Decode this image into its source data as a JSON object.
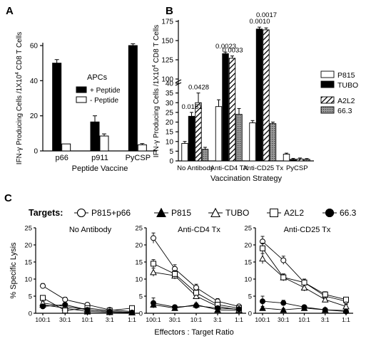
{
  "panel_labels": {
    "a": "A",
    "b": "B",
    "c": "C"
  },
  "chart_data": [
    {
      "type": "bar",
      "panel": "A",
      "categories": [
        "p66",
        "p911",
        "PyCSP"
      ],
      "series": [
        {
          "name": "+ Peptide",
          "color": "#000000",
          "values": [
            50,
            16.5,
            60
          ],
          "errors": [
            2,
            3.5,
            1
          ]
        },
        {
          "name": "- Peptide",
          "color": "#ffffff",
          "values": [
            4,
            8.5,
            3.5
          ],
          "errors": [
            0,
            1.2,
            0.7
          ]
        }
      ],
      "legend_title": "APCs",
      "xlabel": "Peptide Vaccine",
      "ylabel_main": "IFN-γ Producing Cells /1X10",
      "ylabel_sup": "4",
      "ylabel_tail": " CD8 T Cells",
      "ylim": [
        0,
        60
      ],
      "yticks": [
        0,
        20,
        40,
        60
      ]
    },
    {
      "type": "bar",
      "panel": "B",
      "categories": [
        "No Antibody",
        "Anti-CD4 TX",
        "Anti-CD25 Tx",
        "PyCSP"
      ],
      "series": [
        {
          "name": "P815",
          "color": "#ffffff",
          "pattern": "none",
          "values": [
            9,
            28,
            43,
            3.5
          ],
          "errors": [
            1,
            3.5,
            3,
            0.5
          ]
        },
        {
          "name": "TUBO",
          "color": "#000000",
          "pattern": "none",
          "values": [
            23,
            133,
            165,
            0.8
          ],
          "errors": [
            2,
            2,
            2.5,
            0.5
          ]
        },
        {
          "name": "A2L2",
          "color": "#ffffff",
          "pattern": "diagonal",
          "values": [
            30,
            127,
            164,
            1
          ],
          "errors": [
            5,
            3,
            2.5,
            0.5
          ]
        },
        {
          "name": "66.3",
          "color": "#888888",
          "pattern": "dots",
          "values": [
            6,
            24,
            42,
            0.8
          ],
          "errors": [
            1,
            3,
            2,
            0.4
          ]
        }
      ],
      "pvalues": [
        {
          "category": "No Antibody",
          "series": "TUBO",
          "label": "0.0151"
        },
        {
          "category": "No Antibody",
          "series": "A2L2",
          "label": "0.0428"
        },
        {
          "category": "Anti-CD4 TX",
          "series": "TUBO",
          "label": "0.0023"
        },
        {
          "category": "Anti-CD4 TX",
          "series": "A2L2",
          "label": "0.0033"
        },
        {
          "category": "Anti-CD25 Tx",
          "series": "TUBO",
          "label": "0.0010"
        },
        {
          "category": "Anti-CD25 Tx",
          "series": "A2L2",
          "label": "0.0017"
        }
      ],
      "xlabel": "Vaccination Strategy",
      "ylabel_main": "IFN-γ Producing Cells /1X10",
      "ylabel_sup": "4",
      "ylabel_tail": " CD8 T Cells",
      "ylim": [
        0,
        175
      ],
      "axis_break": [
        40,
        100
      ],
      "yticks": [
        0,
        5,
        10,
        15,
        20,
        25,
        30,
        35,
        40,
        100,
        125,
        150,
        175
      ]
    },
    {
      "type": "line",
      "panel": "C",
      "targets_label": "Targets:",
      "x": [
        "100:1",
        "30:1",
        "10:1",
        "3:1",
        "1:1"
      ],
      "ylabel": "% Specific Lysis",
      "xlabel": "Effectors : Target Ratio",
      "ylim": [
        0,
        25
      ],
      "yticks": [
        0,
        5,
        10,
        15,
        20,
        25
      ],
      "series_styles": [
        {
          "name": "P815+p66",
          "marker": "circle-open"
        },
        {
          "name": "P815",
          "marker": "triangle-filled"
        },
        {
          "name": "TUBO",
          "marker": "triangle-open"
        },
        {
          "name": "A2L2",
          "marker": "square-open"
        },
        {
          "name": "66.3",
          "marker": "circle-filled"
        }
      ],
      "subplots": [
        {
          "title": "No Antibody",
          "series": [
            {
              "name": "P815+p66",
              "values": [
                8,
                4,
                2.5,
                1,
                0.5
              ],
              "errors": [
                0.7,
                0.7,
                0.5,
                0.4,
                0.3
              ]
            },
            {
              "name": "P815",
              "values": [
                2.5,
                1.5,
                0.5,
                0.3,
                0.2
              ],
              "errors": [
                0.5,
                0.5,
                0.3,
                0.2,
                0.2
              ]
            },
            {
              "name": "TUBO",
              "values": [
                3,
                2,
                1,
                0.5,
                0.3
              ],
              "errors": [
                0.5,
                0.5,
                0.4,
                0.3,
                0.2
              ]
            },
            {
              "name": "A2L2",
              "values": [
                4.5,
                0.8,
                1.5,
                0.8,
                1.5
              ],
              "errors": [
                0.5,
                0.4,
                0.4,
                0.3,
                0.5
              ]
            },
            {
              "name": "66.3",
              "values": [
                2,
                2.5,
                1,
                0.5,
                0.2
              ],
              "errors": [
                0.5,
                0.5,
                0.4,
                0.3,
                0.2
              ]
            }
          ]
        },
        {
          "title": "Anti-CD4 Tx",
          "series": [
            {
              "name": "P815+p66",
              "values": [
                22,
                13,
                7.5,
                3.5,
                2
              ],
              "errors": [
                1.5,
                1.2,
                1,
                0.8,
                0.6
              ]
            },
            {
              "name": "P815",
              "values": [
                2.5,
                1.5,
                2.5,
                1,
                0.8
              ],
              "errors": [
                0.6,
                0.5,
                0.5,
                0.4,
                0.3
              ]
            },
            {
              "name": "TUBO",
              "values": [
                12,
                11,
                5,
                2,
                1
              ],
              "errors": [
                1.2,
                1,
                0.8,
                0.6,
                0.4
              ]
            },
            {
              "name": "A2L2",
              "values": [
                14.5,
                11.5,
                6,
                2.5,
                1.5
              ],
              "errors": [
                1.2,
                1,
                0.8,
                0.6,
                0.5
              ]
            },
            {
              "name": "66.3",
              "values": [
                3,
                1.8,
                2.2,
                1.5,
                1.2
              ],
              "errors": [
                1.5,
                0.5,
                0.5,
                0.4,
                0.4
              ]
            }
          ]
        },
        {
          "title": "Anti-CD25 Tx",
          "series": [
            {
              "name": "P815+p66",
              "values": [
                21,
                15.5,
                9,
                5,
                3.5
              ],
              "errors": [
                1.5,
                1.2,
                1,
                0.8,
                0.6
              ]
            },
            {
              "name": "P815",
              "values": [
                1.5,
                1,
                1.5,
                1,
                0.8
              ],
              "errors": [
                0.5,
                0.4,
                0.4,
                0.3,
                0.3
              ]
            },
            {
              "name": "TUBO",
              "values": [
                16,
                10.5,
                7.5,
                4,
                2
              ],
              "errors": [
                1.5,
                1,
                1,
                0.8,
                0.6
              ]
            },
            {
              "name": "A2L2",
              "values": [
                19,
                10.5,
                9,
                5.5,
                4
              ],
              "errors": [
                1.5,
                1,
                1,
                0.8,
                0.6
              ]
            },
            {
              "name": "66.3",
              "values": [
                3.5,
                3,
                1.8,
                1,
                0.5
              ],
              "errors": [
                1.5,
                0.8,
                0.5,
                0.4,
                0.3
              ]
            }
          ]
        }
      ]
    }
  ]
}
